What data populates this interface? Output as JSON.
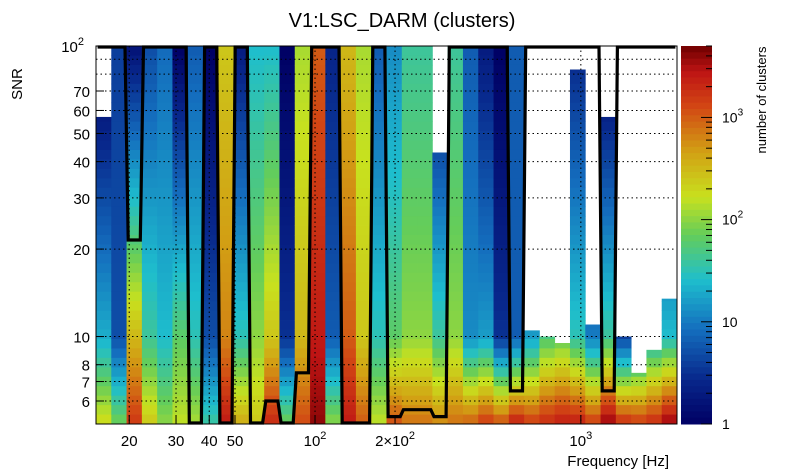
{
  "chart_data": {
    "type": "heatmap",
    "title": "V1:LSC_DARM (clusters)",
    "xlabel": "Frequency [Hz]",
    "ylabel": "SNR",
    "zlabel": "number of clusters",
    "x_scale": "log",
    "y_scale": "log",
    "z_scale": "log",
    "xlim": [
      15,
      2300
    ],
    "ylim": [
      5,
      100
    ],
    "zlim": [
      1,
      5000
    ],
    "grid": true,
    "x_ticks": [
      {
        "value": 20,
        "label": "20"
      },
      {
        "value": 30,
        "label": "30"
      },
      {
        "value": 40,
        "label": "40"
      },
      {
        "value": 50,
        "label": "50"
      },
      {
        "value": 100,
        "label": "10",
        "sup": "2"
      },
      {
        "value": 200,
        "label": "2×10",
        "sup": "2"
      },
      {
        "value": 1000,
        "label": "10",
        "sup": "3"
      }
    ],
    "y_ticks": [
      {
        "value": 100,
        "label": "10",
        "sup": "2"
      },
      {
        "value": 70,
        "label": "70"
      },
      {
        "value": 60,
        "label": "60"
      },
      {
        "value": 50,
        "label": "50"
      },
      {
        "value": 40,
        "label": "40"
      },
      {
        "value": 30,
        "label": "30"
      },
      {
        "value": 20,
        "label": "20"
      },
      {
        "value": 10,
        "label": "10"
      },
      {
        "value": 8,
        "label": "8"
      },
      {
        "value": 7,
        "label": "7"
      },
      {
        "value": 6,
        "label": "6"
      }
    ],
    "z_ticks": [
      {
        "value": 1,
        "label": "1"
      },
      {
        "value": 10,
        "label": "10"
      },
      {
        "value": 100,
        "label": "10",
        "sup": "2"
      },
      {
        "value": 1000,
        "label": "10",
        "sup": "3"
      }
    ],
    "columns_note": "each column: top SNR where data starts (100 = full height) and log10(count) at SNR 100 (top) and at SNR 5 (bottom), plus mid value at SNR ~10",
    "columns": [
      {
        "top": 57,
        "z_top": 0.0,
        "z_mid": 1.3,
        "z_bot": 2.3
      },
      {
        "top": 100,
        "z_top": 0.6,
        "z_mid": 0.7,
        "z_bot": 1.9
      },
      {
        "top": 100,
        "z_top": 0.2,
        "z_mid": 2.5,
        "z_bot": 3.2
      },
      {
        "top": 100,
        "z_top": 0.7,
        "z_mid": 1.6,
        "z_bot": 2.4
      },
      {
        "top": 100,
        "z_top": 0.9,
        "z_mid": 1.4,
        "z_bot": 2.0
      },
      {
        "top": 100,
        "z_top": 0.0,
        "z_mid": 1.8,
        "z_bot": 2.2
      },
      {
        "top": 100,
        "z_top": 0.8,
        "z_mid": 1.5,
        "z_bot": 2.1
      },
      {
        "top": 100,
        "z_top": 0.0,
        "z_mid": 0.7,
        "z_bot": 1.6
      },
      {
        "top": 100,
        "z_top": 2.4,
        "z_mid": 2.8,
        "z_bot": 3.4
      },
      {
        "top": 100,
        "z_top": 0.3,
        "z_mid": 1.5,
        "z_bot": 2.6
      },
      {
        "top": 100,
        "z_top": 1.4,
        "z_mid": 2.0,
        "z_bot": 2.4
      },
      {
        "top": 100,
        "z_top": 1.4,
        "z_mid": 2.4,
        "z_bot": 3.3
      },
      {
        "top": 100,
        "z_top": 0.0,
        "z_mid": 0.5,
        "z_bot": 1.9
      },
      {
        "top": 100,
        "z_top": 2.1,
        "z_mid": 2.5,
        "z_bot": 3.1
      },
      {
        "top": 100,
        "z_top": 3.0,
        "z_mid": 3.4,
        "z_bot": 3.6
      },
      {
        "top": 100,
        "z_top": 0.4,
        "z_mid": 0.8,
        "z_bot": 2.0
      },
      {
        "top": 100,
        "z_top": 2.5,
        "z_mid": 3.0,
        "z_bot": 3.4
      },
      {
        "top": 100,
        "z_top": 2.1,
        "z_mid": 2.4,
        "z_bot": 3.0
      },
      {
        "top": 100,
        "z_top": 0.8,
        "z_mid": 1.5,
        "z_bot": 2.2
      },
      {
        "top": 100,
        "z_top": 1.1,
        "z_mid": 1.8,
        "z_bot": 3.1
      },
      {
        "top": 100,
        "z_top": 1.6,
        "z_mid": 2.0,
        "z_bot": 2.9
      },
      {
        "top": 100,
        "z_top": 1.6,
        "z_mid": 2.0,
        "z_bot": 2.9
      },
      {
        "top": 43,
        "z_top": 0.2,
        "z_mid": 1.6,
        "z_bot": 2.8
      },
      {
        "top": 100,
        "z_top": 1.6,
        "z_mid": 2.0,
        "z_bot": 2.9
      },
      {
        "top": 100,
        "z_top": 0.8,
        "z_mid": 1.1,
        "z_bot": 3.0
      },
      {
        "top": 100,
        "z_top": 0.3,
        "z_mid": 1.2,
        "z_bot": 3.2
      },
      {
        "top": 100,
        "z_top": 0.0,
        "z_mid": 0.5,
        "z_bot": 3.1
      },
      {
        "top": 100,
        "z_top": 0.8,
        "z_mid": 0.8,
        "z_bot": 3.4
      },
      {
        "top": 10.5,
        "z_top": 0.0,
        "z_mid": 1.2,
        "z_bot": 3.2
      },
      {
        "top": 10,
        "z_top": 0.0,
        "z_mid": 1.7,
        "z_bot": 3.3
      },
      {
        "top": 9.5,
        "z_top": 0.2,
        "z_mid": 1.8,
        "z_bot": 3.4
      },
      {
        "top": 83,
        "z_top": 0.4,
        "z_mid": 1.5,
        "z_bot": 3.4
      },
      {
        "top": 11,
        "z_top": 0.2,
        "z_mid": 1.0,
        "z_bot": 3.2
      },
      {
        "top": 57,
        "z_top": 0.0,
        "z_mid": 1.6,
        "z_bot": 3.6
      },
      {
        "top": 10,
        "z_top": 0.0,
        "z_mid": 0.6,
        "z_bot": 3.3
      },
      {
        "top": 7.5,
        "z_top": 0.0,
        "z_mid": 0.9,
        "z_bot": 3.2
      },
      {
        "top": 9,
        "z_top": 0.2,
        "z_mid": 1.3,
        "z_bot": 3.3
      },
      {
        "top": 13.5,
        "z_top": 0.0,
        "z_mid": 1.4,
        "z_bot": 3.6
      }
    ],
    "outline_note": "black contour: per-column SNR level where the outline sits (100 = top edge, 5 = bottom edge)",
    "outline": [
      100,
      100,
      21.5,
      100,
      100,
      100,
      5,
      100,
      5,
      100,
      5,
      6,
      5,
      7.5,
      100,
      100,
      5,
      5,
      100,
      5.3,
      5.6,
      5.6,
      5.3,
      100,
      100,
      100,
      100,
      6.5,
      100,
      100,
      100,
      100,
      100,
      6.5,
      100,
      100,
      100,
      100
    ]
  }
}
